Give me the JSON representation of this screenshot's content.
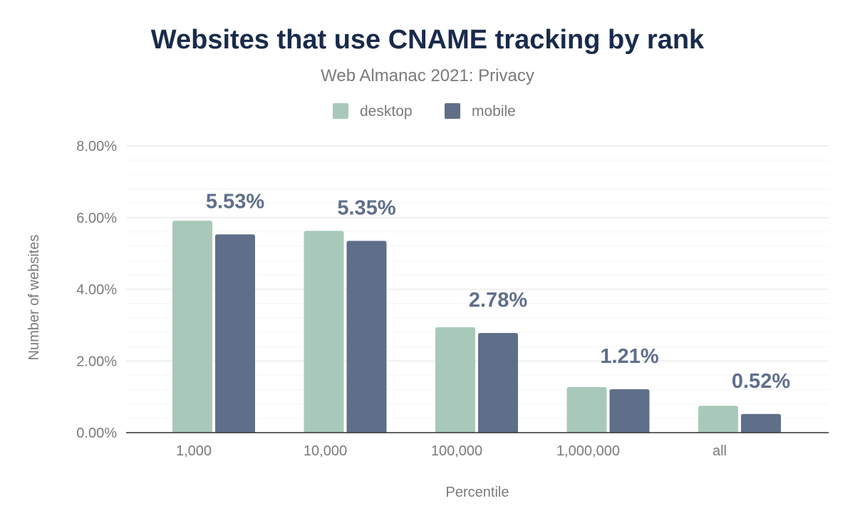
{
  "chart_data": {
    "type": "bar",
    "title": "Websites that use CNAME tracking by rank",
    "subtitle": "Web Almanac 2021: Privacy",
    "xlabel": "Percentile",
    "ylabel": "Number of websites",
    "categories": [
      "1,000",
      "10,000",
      "100,000",
      "1,000,000",
      "all"
    ],
    "series": [
      {
        "name": "desktop",
        "color": "#a8c9b9",
        "values": [
          5.91,
          5.63,
          2.94,
          1.27,
          0.75
        ]
      },
      {
        "name": "mobile",
        "color": "#5f6f8a",
        "values": [
          5.53,
          5.35,
          2.78,
          1.21,
          0.52
        ]
      }
    ],
    "data_labels": [
      "5.53%",
      "5.35%",
      "2.78%",
      "1.21%",
      "0.52%"
    ],
    "ylim": [
      0,
      8
    ],
    "yticks": [
      "0.00%",
      "2.00%",
      "4.00%",
      "6.00%",
      "8.00%"
    ],
    "grid": true,
    "legend": "top-center",
    "colors": {
      "title": "#1a2b4b",
      "text": "#7a7a7a",
      "label": "#5f6f8a"
    }
  }
}
